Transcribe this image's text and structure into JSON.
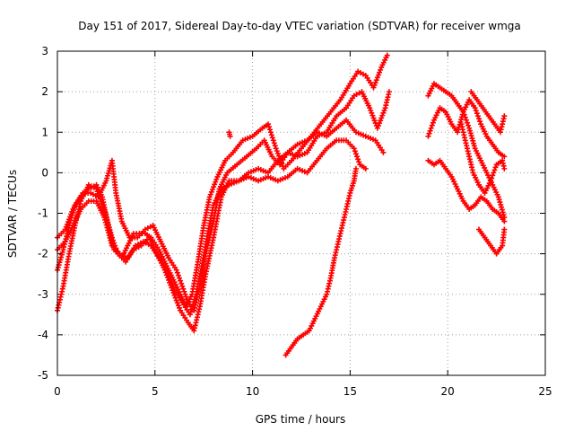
{
  "chart_data": {
    "type": "scatter",
    "title": "Day 151 of 2017, Sidereal Day-to-day VTEC variation (SDTVAR) for receiver wmga",
    "xlabel": "GPS time / hours",
    "ylabel": "SDTVAR / TECUs",
    "xlim": [
      0,
      25
    ],
    "ylim": [
      -5,
      3
    ],
    "xticks": [
      0,
      5,
      10,
      15,
      20,
      25
    ],
    "yticks": [
      -5,
      -4,
      -3,
      -2,
      -1,
      0,
      1,
      2,
      3
    ],
    "grid": true,
    "legend": "none",
    "marker": "+",
    "color": "#ff0000",
    "series": [
      {
        "points": [
          [
            0,
            -1.6
          ],
          [
            0.4,
            -1.4
          ],
          [
            0.8,
            -0.9
          ],
          [
            1.2,
            -0.6
          ],
          [
            1.6,
            -0.4
          ],
          [
            2.0,
            -0.3
          ],
          [
            2.3,
            -0.6
          ],
          [
            2.6,
            -1.3
          ],
          [
            2.9,
            -1.9
          ],
          [
            3.3,
            -2.1
          ],
          [
            3.6,
            -1.8
          ],
          [
            3.9,
            -1.5
          ],
          [
            4.2,
            -1.5
          ],
          [
            4.5,
            -1.5
          ],
          [
            4.8,
            -1.6
          ],
          [
            5.2,
            -1.9
          ],
          [
            5.6,
            -2.3
          ],
          [
            6.0,
            -2.7
          ],
          [
            6.3,
            -3.0
          ],
          [
            6.6,
            -3.3
          ],
          [
            6.9,
            -3.0
          ],
          [
            7.2,
            -2.2
          ],
          [
            7.5,
            -1.3
          ],
          [
            7.8,
            -0.6
          ],
          [
            8.2,
            -0.1
          ],
          [
            8.6,
            0.3
          ],
          [
            9.0,
            0.5
          ],
          [
            9.5,
            0.8
          ],
          [
            10.0,
            0.9
          ],
          [
            10.5,
            1.1
          ],
          [
            10.8,
            1.2
          ],
          [
            11.2,
            0.6
          ],
          [
            11.6,
            0.1
          ],
          [
            12.0,
            0.3
          ],
          [
            12.5,
            0.6
          ],
          [
            13.0,
            0.9
          ],
          [
            13.5,
            1.2
          ],
          [
            14.0,
            1.5
          ],
          [
            14.5,
            1.8
          ],
          [
            15.0,
            2.2
          ],
          [
            15.4,
            2.5
          ],
          [
            15.8,
            2.4
          ],
          [
            16.2,
            2.1
          ],
          [
            16.6,
            2.6
          ],
          [
            16.9,
            2.9
          ]
        ]
      },
      {
        "points": [
          [
            0,
            -2.4
          ],
          [
            0.3,
            -1.9
          ],
          [
            0.6,
            -1.3
          ],
          [
            0.9,
            -0.8
          ],
          [
            1.3,
            -0.5
          ],
          [
            1.7,
            -0.5
          ],
          [
            2.1,
            -0.6
          ],
          [
            2.5,
            -0.2
          ],
          [
            2.8,
            0.3
          ],
          [
            3.0,
            -0.5
          ],
          [
            3.3,
            -1.2
          ],
          [
            3.7,
            -1.6
          ],
          [
            4.1,
            -1.6
          ],
          [
            4.5,
            -1.4
          ],
          [
            4.9,
            -1.3
          ],
          [
            5.3,
            -1.7
          ],
          [
            5.7,
            -2.1
          ],
          [
            6.1,
            -2.4
          ],
          [
            6.4,
            -2.8
          ],
          [
            6.7,
            -3.2
          ],
          [
            7.0,
            -3.4
          ],
          [
            7.3,
            -2.8
          ],
          [
            7.6,
            -2.0
          ],
          [
            8.0,
            -1.2
          ],
          [
            8.3,
            -0.4
          ],
          [
            8.7,
            0.0
          ],
          [
            9.2,
            0.2
          ],
          [
            9.7,
            0.4
          ],
          [
            10.2,
            0.6
          ],
          [
            10.6,
            0.8
          ],
          [
            11.0,
            0.4
          ],
          [
            11.4,
            0.2
          ],
          [
            11.8,
            0.5
          ],
          [
            12.3,
            0.4
          ],
          [
            12.8,
            0.5
          ],
          [
            13.3,
            0.9
          ],
          [
            13.8,
            1.0
          ],
          [
            14.3,
            1.4
          ],
          [
            14.8,
            1.6
          ],
          [
            15.2,
            1.9
          ],
          [
            15.6,
            2.0
          ],
          [
            16.0,
            1.6
          ],
          [
            16.4,
            1.1
          ],
          [
            16.8,
            1.6
          ],
          [
            17.0,
            2.0
          ]
        ]
      },
      {
        "points": [
          [
            0,
            -3.4
          ],
          [
            0.3,
            -2.8
          ],
          [
            0.6,
            -2.0
          ],
          [
            0.9,
            -1.3
          ],
          [
            1.2,
            -0.7
          ],
          [
            1.6,
            -0.3
          ],
          [
            2.0,
            -0.4
          ],
          [
            2.4,
            -0.9
          ],
          [
            2.8,
            -1.6
          ],
          [
            3.1,
            -2.0
          ],
          [
            3.5,
            -2.2
          ],
          [
            3.9,
            -1.9
          ],
          [
            4.3,
            -1.8
          ],
          [
            4.7,
            -1.6
          ],
          [
            5.1,
            -2.0
          ],
          [
            5.5,
            -2.4
          ],
          [
            5.9,
            -2.9
          ],
          [
            6.3,
            -3.4
          ],
          [
            6.7,
            -3.7
          ],
          [
            7.0,
            -3.9
          ],
          [
            7.3,
            -3.3
          ],
          [
            7.6,
            -2.5
          ],
          [
            8.0,
            -1.6
          ],
          [
            8.4,
            -0.6
          ],
          [
            8.8,
            -0.2
          ],
          [
            9.3,
            -0.2
          ],
          [
            9.8,
            -0.1
          ],
          [
            10.3,
            -0.2
          ],
          [
            10.8,
            -0.1
          ],
          [
            11.3,
            -0.2
          ],
          [
            11.8,
            -0.1
          ],
          [
            12.3,
            0.1
          ],
          [
            12.8,
            0.0
          ],
          [
            13.3,
            0.3
          ],
          [
            13.8,
            0.6
          ],
          [
            14.3,
            0.8
          ],
          [
            14.8,
            0.8
          ],
          [
            15.2,
            0.6
          ],
          [
            15.5,
            0.2
          ],
          [
            15.8,
            0.1
          ]
        ]
      },
      {
        "points": [
          [
            0,
            -1.9
          ],
          [
            0.4,
            -1.7
          ],
          [
            0.8,
            -1.3
          ],
          [
            1.2,
            -0.9
          ],
          [
            1.6,
            -0.7
          ],
          [
            2.0,
            -0.7
          ],
          [
            2.4,
            -1.1
          ],
          [
            2.8,
            -1.8
          ],
          [
            3.2,
            -2.0
          ],
          [
            3.6,
            -2.1
          ],
          [
            4.0,
            -1.8
          ],
          [
            4.4,
            -1.7
          ],
          [
            4.8,
            -1.8
          ],
          [
            5.2,
            -2.1
          ],
          [
            5.6,
            -2.4
          ],
          [
            6.0,
            -2.9
          ],
          [
            6.4,
            -3.2
          ],
          [
            6.8,
            -3.5
          ],
          [
            7.1,
            -3.0
          ],
          [
            7.4,
            -2.3
          ],
          [
            7.7,
            -1.5
          ],
          [
            8.0,
            -0.8
          ],
          [
            8.4,
            -0.4
          ],
          [
            8.8,
            -0.3
          ],
          [
            9.3,
            -0.2
          ],
          [
            9.8,
            0.0
          ],
          [
            10.3,
            0.1
          ],
          [
            10.8,
            0.0
          ],
          [
            11.3,
            0.3
          ],
          [
            11.8,
            0.5
          ],
          [
            12.3,
            0.7
          ],
          [
            12.8,
            0.8
          ],
          [
            13.3,
            1.0
          ],
          [
            13.8,
            0.9
          ],
          [
            14.3,
            1.1
          ],
          [
            14.8,
            1.3
          ],
          [
            15.3,
            1.0
          ],
          [
            15.8,
            0.9
          ],
          [
            16.3,
            0.8
          ],
          [
            16.7,
            0.5
          ]
        ]
      },
      {
        "points": [
          [
            11.7,
            -4.5
          ],
          [
            12.0,
            -4.3
          ],
          [
            12.3,
            -4.1
          ],
          [
            12.6,
            -4.0
          ],
          [
            12.9,
            -3.9
          ],
          [
            13.2,
            -3.6
          ],
          [
            13.5,
            -3.3
          ],
          [
            13.8,
            -3.0
          ],
          [
            14.0,
            -2.6
          ],
          [
            14.2,
            -2.1
          ],
          [
            14.4,
            -1.7
          ],
          [
            14.6,
            -1.3
          ],
          [
            14.8,
            -0.9
          ],
          [
            15.0,
            -0.5
          ],
          [
            15.2,
            -0.2
          ],
          [
            15.3,
            0.1
          ]
        ]
      },
      {
        "points": [
          [
            8.8,
            1.0
          ],
          [
            8.85,
            0.9
          ]
        ]
      },
      {
        "points": [
          [
            19.0,
            0.9
          ],
          [
            19.3,
            1.3
          ],
          [
            19.6,
            1.6
          ],
          [
            19.9,
            1.5
          ],
          [
            20.2,
            1.2
          ],
          [
            20.5,
            1.0
          ],
          [
            20.8,
            1.5
          ],
          [
            21.1,
            1.8
          ],
          [
            21.4,
            1.6
          ],
          [
            21.7,
            1.2
          ],
          [
            22.0,
            0.9
          ],
          [
            22.3,
            0.7
          ],
          [
            22.6,
            0.5
          ],
          [
            22.9,
            0.4
          ]
        ]
      },
      {
        "points": [
          [
            19.0,
            1.9
          ],
          [
            19.3,
            2.2
          ],
          [
            19.6,
            2.1
          ],
          [
            19.9,
            2.0
          ],
          [
            20.2,
            1.9
          ],
          [
            20.5,
            1.7
          ],
          [
            20.8,
            1.5
          ],
          [
            21.1,
            1.1
          ],
          [
            21.4,
            0.6
          ],
          [
            21.7,
            0.3
          ],
          [
            22.0,
            0.0
          ],
          [
            22.3,
            -0.3
          ],
          [
            22.6,
            -0.6
          ],
          [
            22.9,
            -1.1
          ]
        ]
      },
      {
        "points": [
          [
            19.0,
            0.3
          ],
          [
            19.3,
            0.2
          ],
          [
            19.6,
            0.3
          ],
          [
            19.9,
            0.1
          ],
          [
            20.2,
            -0.1
          ],
          [
            20.5,
            -0.4
          ],
          [
            20.8,
            -0.7
          ],
          [
            21.1,
            -0.9
          ],
          [
            21.4,
            -0.8
          ],
          [
            21.7,
            -0.6
          ],
          [
            22.0,
            -0.7
          ],
          [
            22.3,
            -0.9
          ],
          [
            22.6,
            -1.0
          ],
          [
            22.9,
            -1.2
          ]
        ]
      },
      {
        "points": [
          [
            20.7,
            1.2
          ],
          [
            21.0,
            0.6
          ],
          [
            21.3,
            0.0
          ],
          [
            21.6,
            -0.3
          ],
          [
            21.9,
            -0.5
          ],
          [
            22.2,
            -0.2
          ],
          [
            22.5,
            0.2
          ],
          [
            22.8,
            0.3
          ],
          [
            22.9,
            0.1
          ]
        ]
      },
      {
        "points": [
          [
            21.2,
            2.0
          ],
          [
            21.5,
            1.8
          ],
          [
            21.8,
            1.6
          ],
          [
            22.1,
            1.4
          ],
          [
            22.4,
            1.2
          ],
          [
            22.7,
            1.0
          ],
          [
            22.9,
            1.4
          ]
        ]
      },
      {
        "points": [
          [
            21.6,
            -1.4
          ],
          [
            21.9,
            -1.6
          ],
          [
            22.2,
            -1.8
          ],
          [
            22.5,
            -2.0
          ],
          [
            22.8,
            -1.8
          ],
          [
            22.9,
            -1.4
          ]
        ]
      }
    ]
  }
}
